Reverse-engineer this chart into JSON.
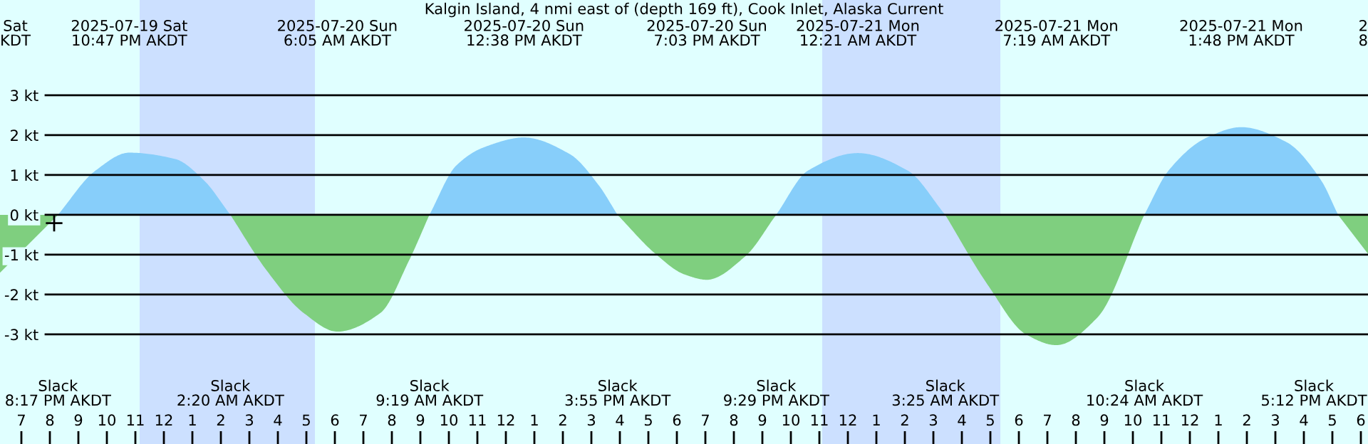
{
  "chart_data": {
    "type": "area",
    "title": "Kalgin Island, 4 nmi east of (depth 169 ft), Cook Inlet, Alaska Current",
    "xlim": [
      "2025-07-19T18:15",
      "2025-07-21T18:15"
    ],
    "ylim": [
      -5.75,
      5.39
    ],
    "yticks": [
      {
        "value": -3,
        "label": "-3 kt"
      },
      {
        "value": -2,
        "label": "-2 kt"
      },
      {
        "value": -1,
        "label": "-1 kt"
      },
      {
        "value": 0,
        "label": "0 kt"
      },
      {
        "value": 1,
        "label": "1 kt"
      },
      {
        "value": 2,
        "label": "2 kt"
      },
      {
        "value": 3,
        "label": "3 kt"
      }
    ],
    "xticks": [
      {
        "value": "2025-07-19T19:00",
        "label": "7"
      },
      {
        "value": "2025-07-19T20:00",
        "label": "8"
      },
      {
        "value": "2025-07-19T21:00",
        "label": "9"
      },
      {
        "value": "2025-07-19T22:00",
        "label": "10"
      },
      {
        "value": "2025-07-19T23:00",
        "label": "11"
      },
      {
        "value": "2025-07-20T00:00",
        "label": "12"
      },
      {
        "value": "2025-07-20T01:00",
        "label": "1"
      },
      {
        "value": "2025-07-20T02:00",
        "label": "2"
      },
      {
        "value": "2025-07-20T03:00",
        "label": "3"
      },
      {
        "value": "2025-07-20T04:00",
        "label": "4"
      },
      {
        "value": "2025-07-20T05:00",
        "label": "5"
      },
      {
        "value": "2025-07-20T06:00",
        "label": "6"
      },
      {
        "value": "2025-07-20T07:00",
        "label": "7"
      },
      {
        "value": "2025-07-20T08:00",
        "label": "8"
      },
      {
        "value": "2025-07-20T09:00",
        "label": "9"
      },
      {
        "value": "2025-07-20T10:00",
        "label": "10"
      },
      {
        "value": "2025-07-20T11:00",
        "label": "11"
      },
      {
        "value": "2025-07-20T12:00",
        "label": "12"
      },
      {
        "value": "2025-07-20T13:00",
        "label": "1"
      },
      {
        "value": "2025-07-20T14:00",
        "label": "2"
      },
      {
        "value": "2025-07-20T15:00",
        "label": "3"
      },
      {
        "value": "2025-07-20T16:00",
        "label": "4"
      },
      {
        "value": "2025-07-20T17:00",
        "label": "5"
      },
      {
        "value": "2025-07-20T18:00",
        "label": "6"
      },
      {
        "value": "2025-07-20T19:00",
        "label": "7"
      },
      {
        "value": "2025-07-20T20:00",
        "label": "8"
      },
      {
        "value": "2025-07-20T21:00",
        "label": "9"
      },
      {
        "value": "2025-07-20T22:00",
        "label": "10"
      },
      {
        "value": "2025-07-20T23:00",
        "label": "11"
      },
      {
        "value": "2025-07-21T00:00",
        "label": "12"
      },
      {
        "value": "2025-07-21T01:00",
        "label": "1"
      },
      {
        "value": "2025-07-21T02:00",
        "label": "2"
      },
      {
        "value": "2025-07-21T03:00",
        "label": "3"
      },
      {
        "value": "2025-07-21T04:00",
        "label": "4"
      },
      {
        "value": "2025-07-21T05:00",
        "label": "5"
      },
      {
        "value": "2025-07-21T06:00",
        "label": "6"
      },
      {
        "value": "2025-07-21T07:00",
        "label": "7"
      },
      {
        "value": "2025-07-21T08:00",
        "label": "8"
      },
      {
        "value": "2025-07-21T09:00",
        "label": "9"
      },
      {
        "value": "2025-07-21T10:00",
        "label": "10"
      },
      {
        "value": "2025-07-21T11:00",
        "label": "11"
      },
      {
        "value": "2025-07-21T12:00",
        "label": "12"
      },
      {
        "value": "2025-07-21T13:00",
        "label": "1"
      },
      {
        "value": "2025-07-21T14:00",
        "label": "2"
      },
      {
        "value": "2025-07-21T15:00",
        "label": "3"
      },
      {
        "value": "2025-07-21T16:00",
        "label": "4"
      },
      {
        "value": "2025-07-21T17:00",
        "label": "5"
      },
      {
        "value": "2025-07-21T18:00",
        "label": "6"
      }
    ],
    "grid": "y",
    "series": [
      {
        "color": "#87cefa",
        "x": [
          "2025-07-19T20:17",
          "2025-07-19T21:35",
          "2025-07-19T22:47",
          "2025-07-20T00:24",
          "2025-07-20T01:24",
          "2025-07-20T02:20",
          "2025-07-20T03:36",
          "2025-07-20T04:54",
          "2025-07-20T06:05",
          "2025-07-20T07:36",
          "2025-07-20T08:36",
          "2025-07-20T09:19",
          "2025-07-20T10:15",
          "2025-07-20T11:15",
          "2025-07-20T12:38",
          "2025-07-20T14:15",
          "2025-07-20T15:15",
          "2025-07-20T15:55",
          "2025-07-20T17:15",
          "2025-07-20T18:15",
          "2025-07-20T19:03",
          "2025-07-20T20:24",
          "2025-07-20T21:29",
          "2025-07-20T22:36",
          "2025-07-21T00:21",
          "2025-07-21T02:06",
          "2025-07-21T03:25",
          "2025-07-21T04:54",
          "2025-07-21T06:15",
          "2025-07-21T07:19",
          "2025-07-21T08:45",
          "2025-07-21T10:24",
          "2025-07-21T11:15",
          "2025-07-21T12:36",
          "2025-07-21T13:48",
          "2025-07-21T15:24",
          "2025-07-21T16:36",
          "2025-07-21T17:12"
        ],
        "values": [
          0,
          1.1,
          1.56,
          1.4,
          0.87,
          0,
          null,
          null,
          null,
          null,
          null,
          0,
          1.23,
          1.7,
          1.94,
          1.52,
          0.75,
          0,
          null,
          null,
          null,
          null,
          0,
          1.11,
          1.55,
          1.11,
          0,
          null,
          null,
          null,
          null,
          0,
          1.11,
          1.94,
          2.2,
          1.82,
          0.87,
          0
        ]
      },
      {
        "color": "#7fcf7f",
        "x": [
          "2025-07-19T18:15",
          "2025-07-19T20:17",
          "2025-07-19T21:35",
          "2025-07-19T22:47",
          "2025-07-20T00:24",
          "2025-07-20T01:24",
          "2025-07-20T02:20",
          "2025-07-20T03:36",
          "2025-07-20T04:54",
          "2025-07-20T06:05",
          "2025-07-20T07:36",
          "2025-07-20T08:36",
          "2025-07-20T09:19",
          "2025-07-20T10:15",
          "2025-07-20T11:15",
          "2025-07-20T12:38",
          "2025-07-20T14:15",
          "2025-07-20T15:15",
          "2025-07-20T15:55",
          "2025-07-20T17:15",
          "2025-07-20T18:15",
          "2025-07-20T19:03",
          "2025-07-20T20:24",
          "2025-07-20T21:29",
          "2025-07-20T22:36",
          "2025-07-21T00:21",
          "2025-07-21T02:06",
          "2025-07-21T03:25",
          "2025-07-21T04:54",
          "2025-07-21T06:15",
          "2025-07-21T07:19",
          "2025-07-21T08:45",
          "2025-07-21T10:24",
          "2025-07-21T11:15",
          "2025-07-21T12:36",
          "2025-07-21T13:48",
          "2025-07-21T15:24",
          "2025-07-21T16:36",
          "2025-07-21T17:12",
          "2025-07-21T18:15"
        ],
        "values": [
          -1.45,
          0,
          null,
          null,
          null,
          null,
          0,
          -1.39,
          -2.46,
          -2.93,
          -2.46,
          -1.15,
          0,
          null,
          null,
          null,
          null,
          null,
          0,
          -0.98,
          -1.49,
          -1.63,
          -1.04,
          0,
          null,
          null,
          null,
          0,
          -1.75,
          -3.0,
          -3.27,
          -2.58,
          0,
          null,
          null,
          null,
          null,
          null,
          0,
          -0.98
        ]
      },
      {
        "type": "scatter",
        "color": "#000000",
        "marker": "cross",
        "x": [
          "2025-07-19T20:09"
        ],
        "values": [
          -0.21
        ]
      }
    ],
    "bands": [
      {
        "axis": "x",
        "from": "2025-07-19T23:09",
        "to": "2025-07-20T05:18",
        "color": "#cce0ff"
      },
      {
        "axis": "x",
        "from": "2025-07-20T23:06",
        "to": "2025-07-21T05:21",
        "color": "#cce0ff"
      }
    ],
    "annotations": [
      "2025-07-19 Sat\n10:47 PM AKDT",
      "2025-07-20 Sun\n6:05 AM AKDT",
      "2025-07-20 Sun\n12:38 PM AKDT",
      "2025-07-20 Sun\n7:03 PM AKDT",
      "2025-07-21 Mon\n12:21 AM AKDT",
      "2025-07-21 Mon\n7:19 AM AKDT",
      "2025-07-21 Mon\n1:48 PM AKDT",
      "Slack\n8:17 PM AKDT",
      "Slack\n2:20 AM AKDT",
      "Slack\n9:19 AM AKDT",
      "Slack\n3:55 PM AKDT",
      "Slack\n9:29 PM AKDT",
      "Slack\n3:25 AM AKDT",
      "Slack\n10:24 AM AKDT",
      "Slack\n5:12 PM AKDT",
      "Sat\nKDT",
      "2\n8"
    ]
  }
}
